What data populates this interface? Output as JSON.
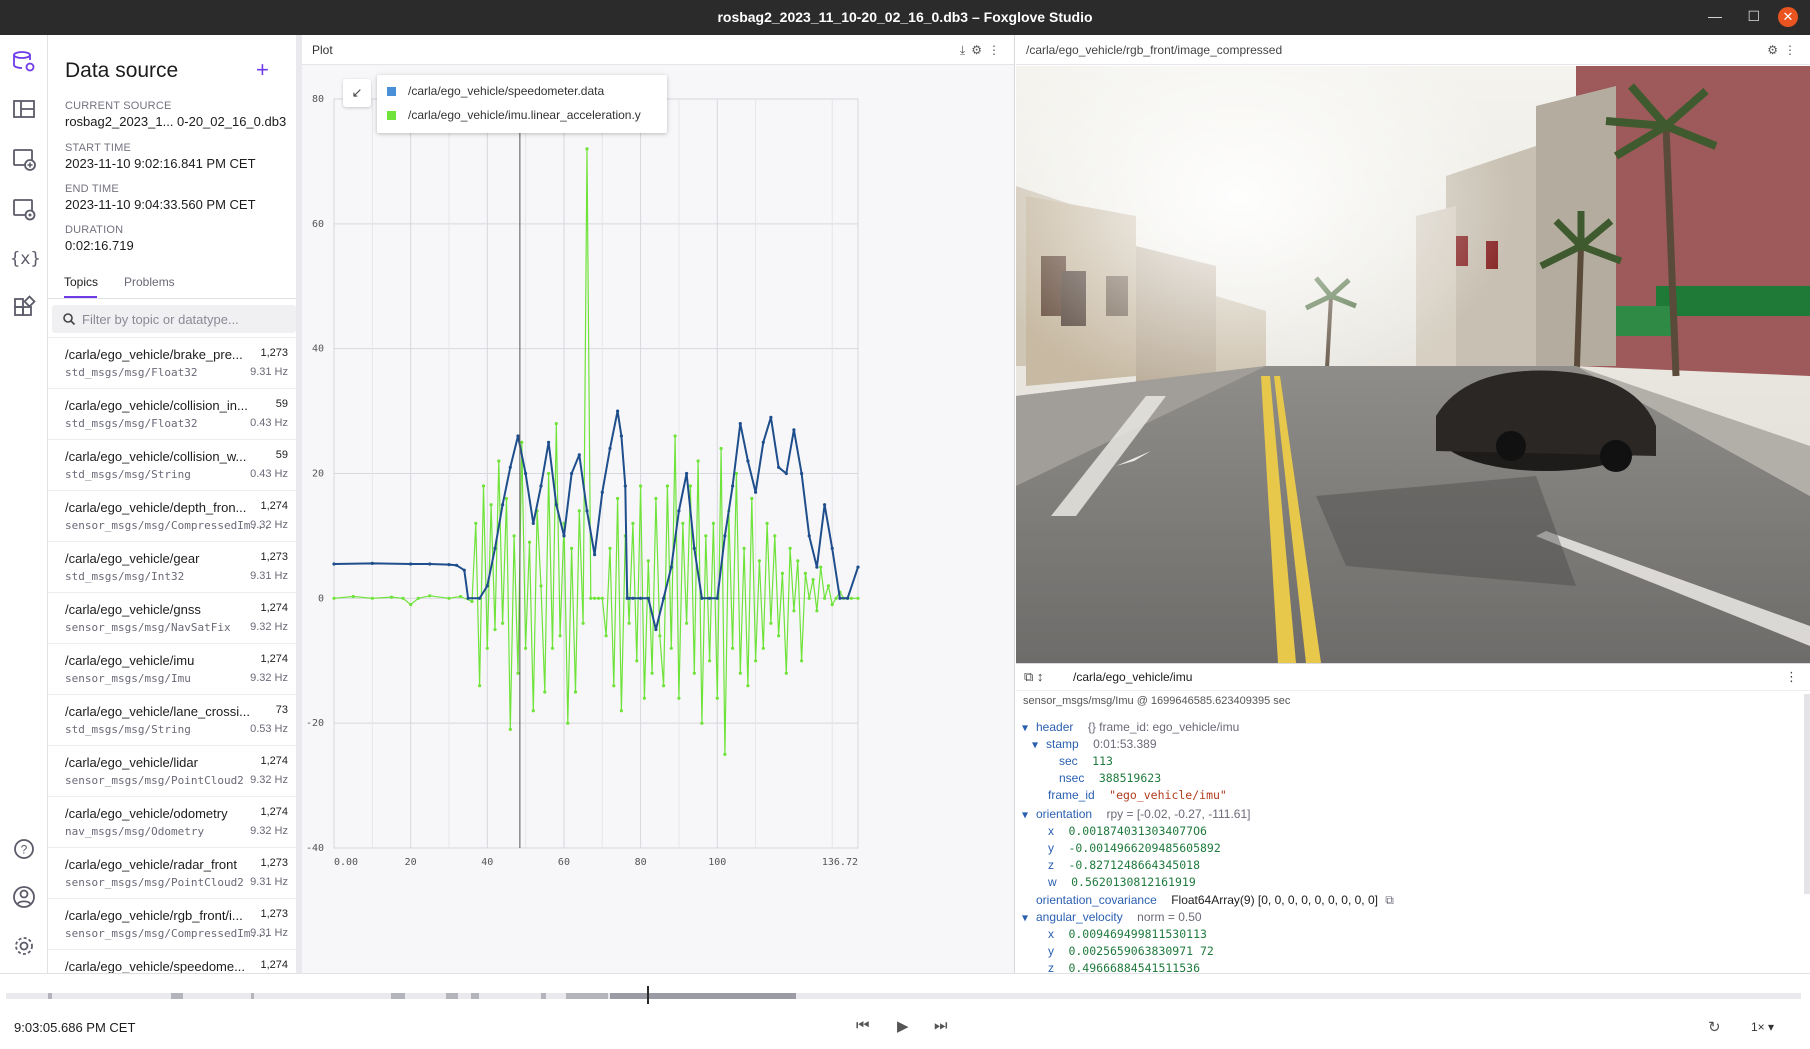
{
  "window": {
    "title": "rosbag2_2023_11_10-20_02_16_0.db3 – Foxglove Studio"
  },
  "rail": {
    "icons": [
      "data-source-icon",
      "layouts-icon",
      "add-panel-icon",
      "panel-settings-icon",
      "variables-icon",
      "extensions-icon",
      "help-icon",
      "account-icon",
      "settings-icon"
    ]
  },
  "sidebar": {
    "title": "Data source",
    "current_source_label": "CURRENT SOURCE",
    "current_source": "rosbag2_2023_1... 0-20_02_16_0.db3",
    "start_time_label": "START TIME",
    "start_time": "2023-11-10  9:02:16.841 PM CET",
    "end_time_label": "END TIME",
    "end_time": "2023-11-10 9:04:33.560 PM CET",
    "duration_label": "DURATION",
    "duration": "0:02:16.719",
    "tabs": [
      "Topics",
      "Problems"
    ],
    "filter_placeholder": "Filter by topic or datatype...",
    "topics": [
      {
        "name": "/carla/ego_vehicle/brake_pre...",
        "type": "std_msgs/msg/Float32",
        "count": "1,273",
        "hz": "9.31 Hz"
      },
      {
        "name": "/carla/ego_vehicle/collision_in...",
        "type": "std_msgs/msg/Float32",
        "count": "59",
        "hz": "0.43 Hz"
      },
      {
        "name": "/carla/ego_vehicle/collision_w...",
        "type": "std_msgs/msg/String",
        "count": "59",
        "hz": "0.43 Hz"
      },
      {
        "name": "/carla/ego_vehicle/depth_fron...",
        "type": "sensor_msgs/msg/CompressedIm...",
        "count": "1,274",
        "hz": "9.32 Hz"
      },
      {
        "name": "/carla/ego_vehicle/gear",
        "type": "std_msgs/msg/Int32",
        "count": "1,273",
        "hz": "9.31 Hz"
      },
      {
        "name": "/carla/ego_vehicle/gnss",
        "type": "sensor_msgs/msg/NavSatFix",
        "count": "1,274",
        "hz": "9.32 Hz"
      },
      {
        "name": "/carla/ego_vehicle/imu",
        "type": "sensor_msgs/msg/Imu",
        "count": "1,274",
        "hz": "9.32 Hz"
      },
      {
        "name": "/carla/ego_vehicle/lane_crossi...",
        "type": "std_msgs/msg/String",
        "count": "73",
        "hz": "0.53 Hz"
      },
      {
        "name": "/carla/ego_vehicle/lidar",
        "type": "sensor_msgs/msg/PointCloud2",
        "count": "1,274",
        "hz": "9.32 Hz"
      },
      {
        "name": "/carla/ego_vehicle/odometry",
        "type": "nav_msgs/msg/Odometry",
        "count": "1,274",
        "hz": "9.32 Hz"
      },
      {
        "name": "/carla/ego_vehicle/radar_front",
        "type": "sensor_msgs/msg/PointCloud2",
        "count": "1,273",
        "hz": "9.31 Hz"
      },
      {
        "name": "/carla/ego_vehicle/rgb_front/i...",
        "type": "sensor_msgs/msg/CompressedIm...",
        "count": "1,273",
        "hz": "9.31 Hz"
      },
      {
        "name": "/carla/ego_vehicle/speedome...",
        "type": "",
        "count": "1,274",
        "hz": ""
      }
    ]
  },
  "plot_panel": {
    "title": "Plot",
    "legend": [
      {
        "name": "/carla/ego_vehicle/speedometer.data",
        "color": "#4a90d9"
      },
      {
        "name": "/carla/ego_vehicle/imu.linear_acceleration.y",
        "color": "#6fe33a"
      }
    ]
  },
  "chart_data": {
    "type": "line",
    "title": "",
    "xlabel": "",
    "ylabel": "",
    "xlim": [
      0,
      136.72
    ],
    "ylim": [
      -40,
      80
    ],
    "x_ticks": [
      "0.00",
      "20",
      "40",
      "60",
      "80",
      "100",
      "136.72"
    ],
    "y_ticks": [
      "80",
      "60",
      "40",
      "20",
      "0",
      "-20",
      "-40"
    ],
    "cursor_x": 48.5,
    "grid": true,
    "series": [
      {
        "name": "/carla/ego_vehicle/speedometer.data",
        "color": "#1f4e8c",
        "x": [
          0,
          10,
          20,
          25,
          30,
          32,
          34,
          35,
          38,
          40,
          42,
          44,
          46,
          48,
          50,
          52,
          54,
          56,
          58,
          60,
          62,
          64,
          66,
          68,
          70,
          72,
          74,
          75,
          76,
          76.5,
          77,
          78,
          80,
          82,
          84,
          86,
          88,
          90,
          92,
          94,
          96,
          98,
          100,
          102,
          104,
          106,
          108,
          110,
          112,
          114,
          116,
          118,
          120,
          122,
          124,
          126,
          128,
          130,
          132,
          134,
          136.72
        ],
        "y": [
          5.5,
          5.6,
          5.5,
          5.5,
          5.4,
          5.3,
          4.5,
          0,
          0,
          2,
          8,
          15,
          21,
          26,
          20,
          12,
          18,
          25,
          15,
          10,
          20,
          23,
          14,
          7,
          17,
          24,
          30,
          26,
          18,
          0,
          0,
          0,
          0,
          0,
          -5,
          0,
          5,
          14,
          20,
          8,
          0,
          0,
          0,
          10,
          18,
          28,
          22,
          17,
          25,
          29,
          21,
          20,
          27,
          20,
          10,
          5,
          15,
          8,
          0,
          0,
          5
        ]
      },
      {
        "name": "/carla/ego_vehicle/imu.linear_acceleration.y",
        "color": "#6fe33a",
        "x": [
          0,
          5,
          10,
          15,
          18,
          20,
          22,
          25,
          30,
          33,
          36,
          37,
          38,
          39,
          40,
          41,
          42,
          43,
          44,
          45,
          46,
          47,
          48,
          49,
          50,
          51,
          52,
          53,
          54,
          55,
          56,
          57,
          58,
          59,
          60,
          61,
          62,
          63,
          64,
          65,
          66,
          67,
          68,
          69,
          70,
          71,
          72,
          73,
          74,
          75,
          76,
          77,
          78,
          79,
          80,
          81,
          82,
          83,
          84,
          85,
          86,
          87,
          88,
          89,
          90,
          91,
          92,
          93,
          94,
          95,
          96,
          97,
          98,
          99,
          100,
          101,
          102,
          103,
          104,
          105,
          106,
          107,
          108,
          109,
          110,
          111,
          112,
          113,
          114,
          115,
          116,
          117,
          118,
          119,
          120,
          121,
          122,
          123,
          124,
          125,
          126,
          127,
          128,
          129,
          130,
          131,
          132,
          133,
          134,
          135,
          136.72
        ],
        "y": [
          0,
          0.3,
          0,
          0.2,
          0,
          -1,
          0,
          0.4,
          0,
          0.3,
          -0.5,
          12,
          -14,
          18,
          -8,
          15,
          -5,
          22,
          -4,
          16,
          -21,
          10,
          -12,
          25,
          -8,
          9,
          -18,
          14,
          2,
          -15,
          20,
          -8,
          28,
          -6,
          12,
          -20,
          8,
          -15,
          14,
          -4,
          72,
          0,
          0,
          0,
          0,
          -6,
          8,
          -14,
          16,
          -18,
          10,
          -4,
          12,
          -10,
          18,
          -16,
          6,
          -12,
          16,
          -6,
          -14,
          18,
          -8,
          26,
          -16,
          12,
          -4,
          18,
          -12,
          22,
          -20,
          10,
          -10,
          12,
          -16,
          24,
          -25,
          14,
          -8,
          20,
          -12,
          8,
          -14,
          16,
          -10,
          6,
          -8,
          12,
          -4,
          10,
          -6,
          4,
          -12,
          8,
          -2,
          6,
          -10,
          4,
          0,
          3,
          -2,
          5,
          0,
          2,
          -1,
          0,
          1,
          0,
          0,
          0,
          0
        ]
      }
    ]
  },
  "image_panel": {
    "title": "/carla/ego_vehicle/rgb_front/image_compressed"
  },
  "raw_panel": {
    "topic": "/carla/ego_vehicle/imu",
    "subtitle": "sensor_msgs/msg/Imu @ 1699646585.623409395 sec",
    "lines": {
      "header_key": "header",
      "header_meta": "{} frame_id: ego_vehicle/imu",
      "stamp_key": "stamp",
      "stamp_meta": "0:01:53.389",
      "sec_key": "sec",
      "sec_val": "113",
      "nsec_key": "nsec",
      "nsec_val": "388519623",
      "frame_id_key": "frame_id",
      "frame_id_val": "\"ego_vehicle/imu\"",
      "orientation_key": "orientation",
      "orientation_meta": "rpy = [-0.02, -0.27, -111.61]",
      "ox_key": "x",
      "ox_val": "0.0018740313034077O6",
      "oy_key": "y",
      "oy_val": "-0.0014966209485605892",
      "oz_key": "z",
      "oz_val": "-0.8271248664345018",
      "ow_key": "w",
      "ow_val": "0.5620130812161919",
      "cov_key": "orientation_covariance",
      "cov_val": "Float64Array(9) [0, 0, 0, 0, 0, 0, 0, 0, 0]",
      "ang_key": "angular_velocity",
      "ang_meta": "norm = 0.50",
      "ax_key": "x",
      "ax_val": "0.009469499811530113",
      "ay_key": "y",
      "ay_val": "0.0025659063830971 72",
      "az_key": "z",
      "az_val": "0.49666884541511536"
    }
  },
  "playback": {
    "current_time": "9:03:05.686 PM CET",
    "speed": "1×",
    "progress": 0.357
  }
}
